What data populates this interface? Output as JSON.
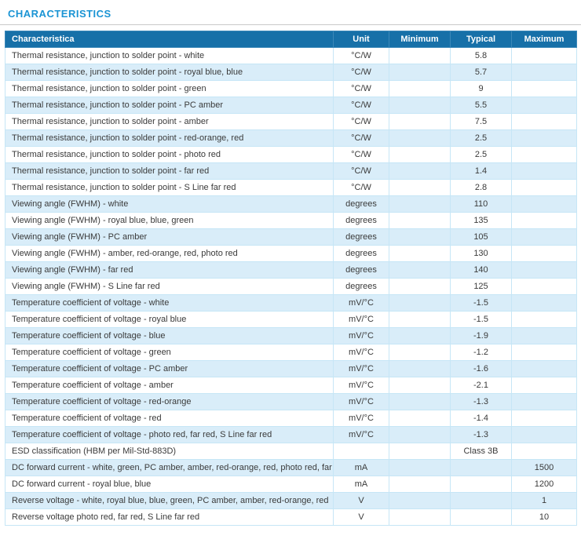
{
  "page": {
    "title": "CHARACTERISTICS"
  },
  "accent_colors": {
    "title_blue": "#1a94d4",
    "header_blue": "#1770a8",
    "stripe_blue": "#d9edf9"
  },
  "table": {
    "columns": [
      "Characteristica",
      "Unit",
      "Minimum",
      "Typical",
      "Maximum"
    ],
    "rows": [
      [
        "Thermal resistance, junction to solder point - white",
        "°C/W",
        "",
        "5.8",
        ""
      ],
      [
        "Thermal resistance, junction to solder point - royal blue, blue",
        "°C/W",
        "",
        "5.7",
        ""
      ],
      [
        "Thermal resistance, junction to solder point - green",
        "°C/W",
        "",
        "9",
        ""
      ],
      [
        "Thermal resistance, junction to solder point - PC amber",
        "°C/W",
        "",
        "5.5",
        ""
      ],
      [
        "Thermal resistance, junction to solder point - amber",
        "°C/W",
        "",
        "7.5",
        ""
      ],
      [
        "Thermal resistance, junction to solder point - red-orange, red",
        "°C/W",
        "",
        "2.5",
        ""
      ],
      [
        "Thermal resistance, junction to solder point - photo red",
        "°C/W",
        "",
        "2.5",
        ""
      ],
      [
        "Thermal resistance, junction to solder point - far red",
        "°C/W",
        "",
        "1.4",
        ""
      ],
      [
        "Thermal resistance, junction to solder point - S Line far red",
        "°C/W",
        "",
        "2.8",
        ""
      ],
      [
        "Viewing angle (FWHM) - white",
        "degrees",
        "",
        "110",
        ""
      ],
      [
        "Viewing angle (FWHM) - royal blue, blue, green",
        "degrees",
        "",
        "135",
        ""
      ],
      [
        "Viewing angle (FWHM) - PC amber",
        "degrees",
        "",
        "105",
        ""
      ],
      [
        "Viewing angle (FWHM) - amber, red-orange, red, photo red",
        "degrees",
        "",
        "130",
        ""
      ],
      [
        "Viewing angle (FWHM) - far red",
        "degrees",
        "",
        "140",
        ""
      ],
      [
        "Viewing angle (FWHM) - S Line far red",
        "degrees",
        "",
        "125",
        ""
      ],
      [
        "Temperature coefficient of voltage - white",
        "mV/°C",
        "",
        "-1.5",
        ""
      ],
      [
        "Temperature coefficient of voltage - royal blue",
        "mV/°C",
        "",
        "-1.5",
        ""
      ],
      [
        "Temperature coefficient of voltage - blue",
        "mV/°C",
        "",
        "-1.9",
        ""
      ],
      [
        "Temperature coefficient of voltage - green",
        "mV/°C",
        "",
        "-1.2",
        ""
      ],
      [
        "Temperature coefficient of voltage - PC amber",
        "mV/°C",
        "",
        "-1.6",
        ""
      ],
      [
        "Temperature coefficient of voltage - amber",
        "mV/°C",
        "",
        "-2.1",
        ""
      ],
      [
        "Temperature coefficient of voltage - red-orange",
        "mV/°C",
        "",
        "-1.3",
        ""
      ],
      [
        "Temperature coefficient of voltage - red",
        "mV/°C",
        "",
        "-1.4",
        ""
      ],
      [
        "Temperature coefficient of voltage - photo red, far red, S Line far red",
        "mV/°C",
        "",
        "-1.3",
        ""
      ],
      [
        "ESD classification (HBM per Mil-Std-883D)",
        "",
        "",
        "Class 3B",
        ""
      ],
      [
        "DC forward current - white, green, PC amber, amber, red-orange, red, photo red, far red",
        "mA",
        "",
        "",
        "1500"
      ],
      [
        "DC forward current - royal blue, blue",
        "mA",
        "",
        "",
        "1200"
      ],
      [
        "Reverse voltage - white, royal blue, blue, green, PC amber, amber, red-orange, red",
        "V",
        "",
        "",
        "1"
      ],
      [
        "Reverse voltage photo red, far red, S Line far red",
        "V",
        "",
        "",
        "10"
      ]
    ]
  }
}
